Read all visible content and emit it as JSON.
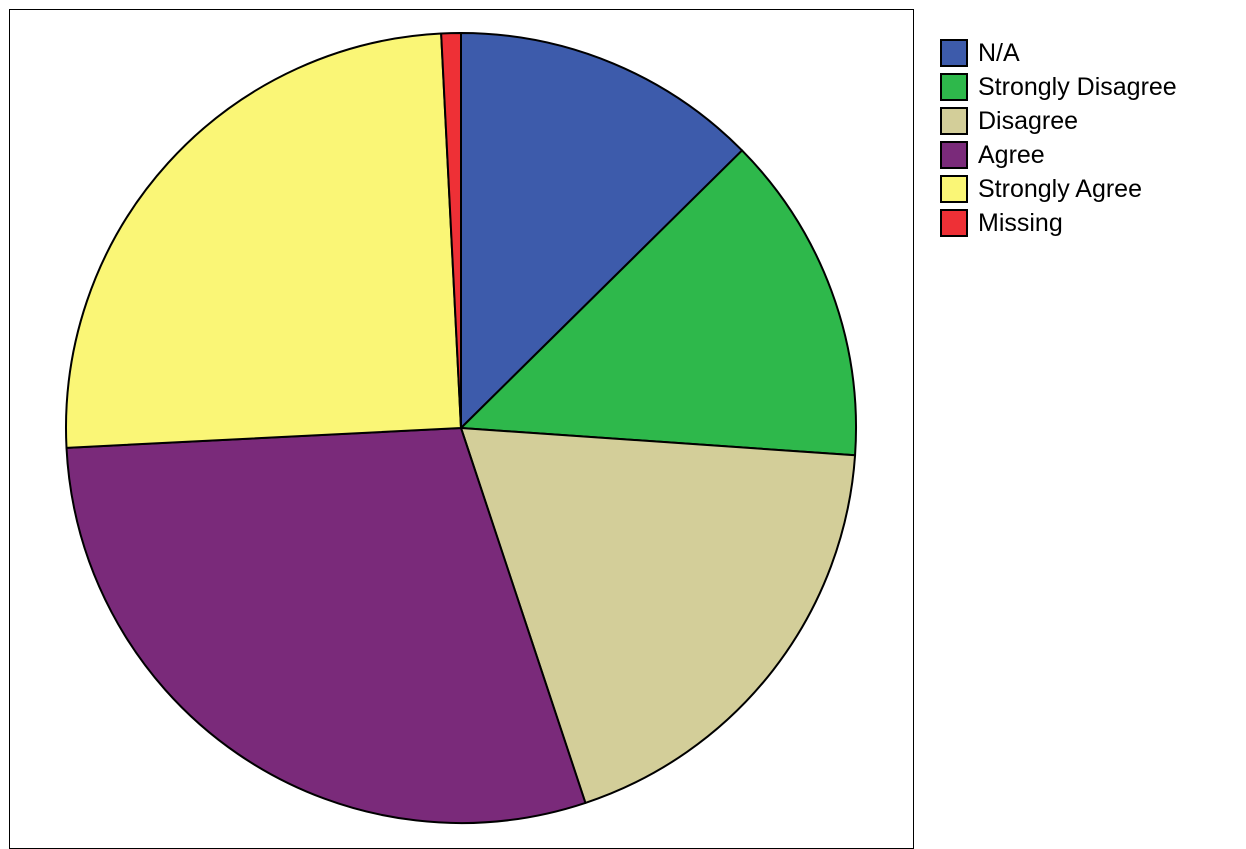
{
  "chart_data": {
    "type": "pie",
    "title": "",
    "start_angle_deg": 0,
    "direction": "clockwise",
    "legend_position": "top-right",
    "slices": [
      {
        "label": "N/A",
        "value": 12.6,
        "color": "#3d5bab"
      },
      {
        "label": "Strongly Disagree",
        "value": 13.5,
        "color": "#2eb84b"
      },
      {
        "label": "Disagree",
        "value": 18.8,
        "color": "#d3ce99"
      },
      {
        "label": "Agree",
        "value": 29.3,
        "color": "#7a2a7a"
      },
      {
        "label": "Strongly Agree",
        "value": 25.0,
        "color": "#faf676"
      },
      {
        "label": "Missing",
        "value": 0.8,
        "color": "#ee3036"
      }
    ]
  }
}
